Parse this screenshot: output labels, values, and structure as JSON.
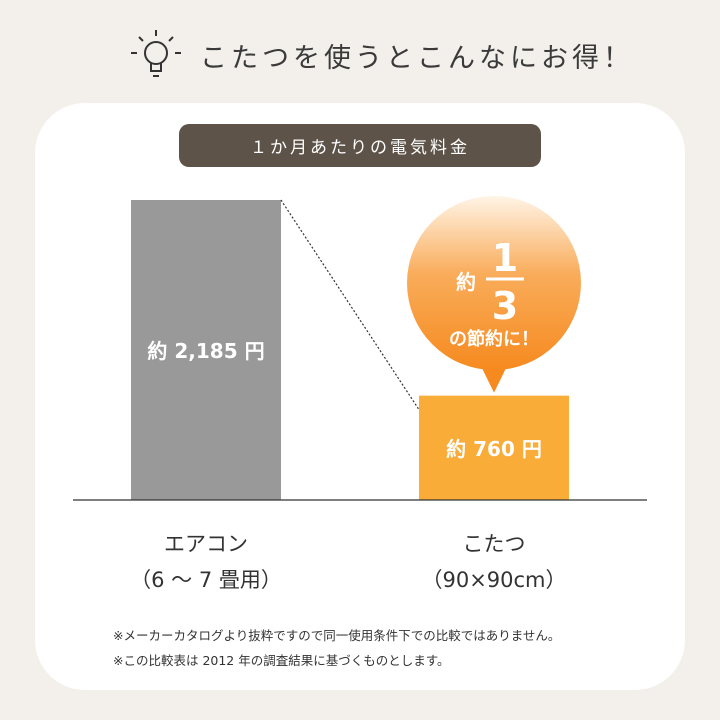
{
  "header": {
    "title": "こたつを使うとこんなにお得！",
    "icon": "lightbulb-icon"
  },
  "chart_data": {
    "type": "bar",
    "title": "１か月あたりの電気料金",
    "categories": [
      "エアコン（6 〜 7 畳用）",
      "こたつ（90×90cm）"
    ],
    "category_lines": [
      [
        "エアコン",
        "（6 〜 7 畳用）"
      ],
      [
        "こたつ",
        "（90×90cm）"
      ]
    ],
    "values": [
      2185,
      760
    ],
    "data_labels": [
      "約 2,185 円",
      "約 760 円"
    ],
    "colors": [
      "#999999",
      "#f9ac38"
    ],
    "callout": {
      "prefix": "約",
      "numerator": "1",
      "denominator": "3",
      "suffix": "の節約に！"
    }
  },
  "notes": [
    "※メーカーカタログより抜粋ですので同一使用条件下での比較ではありません。",
    "※この比較表は 2012 年の調査結果に基づくものとします。"
  ]
}
